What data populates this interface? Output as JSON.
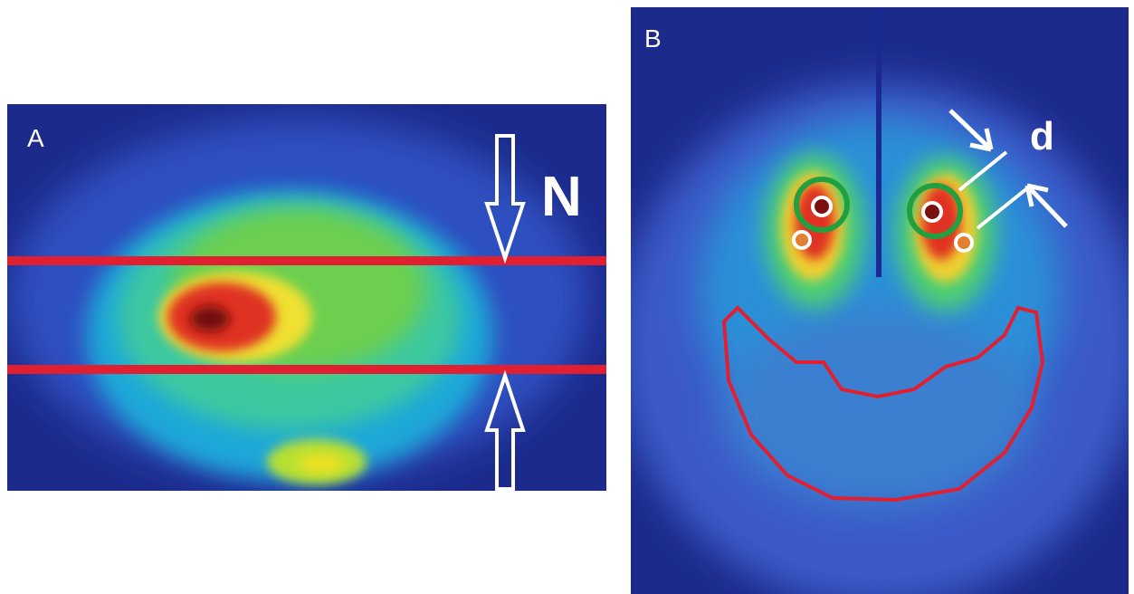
{
  "panels": [
    {
      "label": "A",
      "annotation": "N"
    },
    {
      "label": "B",
      "annotation": "d"
    }
  ]
}
